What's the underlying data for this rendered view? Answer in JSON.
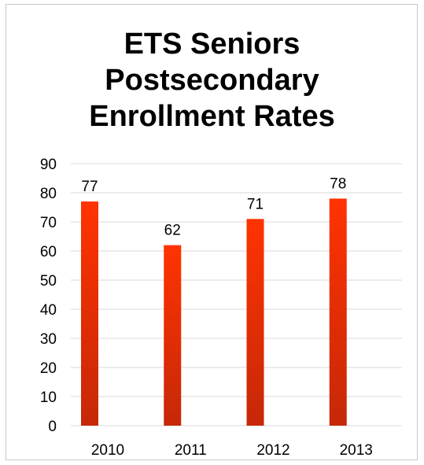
{
  "chart_data": {
    "type": "bar",
    "title_lines": [
      "ETS Seniors",
      "Postsecondary",
      "Enrollment Rates"
    ],
    "categories": [
      "2010",
      "2011",
      "2012",
      "2013"
    ],
    "values": [
      77,
      62,
      71,
      78
    ],
    "data_labels": [
      "77",
      "62",
      "71",
      "78"
    ],
    "y_ticks": [
      "0",
      "10",
      "20",
      "30",
      "40",
      "50",
      "60",
      "70",
      "80",
      "90"
    ],
    "ylim": [
      0,
      90
    ],
    "grid": true,
    "legend": "none",
    "bar_color_top": "#ff3300",
    "bar_color_bottom": "#c62808",
    "grid_color": "#d9d9d9"
  }
}
